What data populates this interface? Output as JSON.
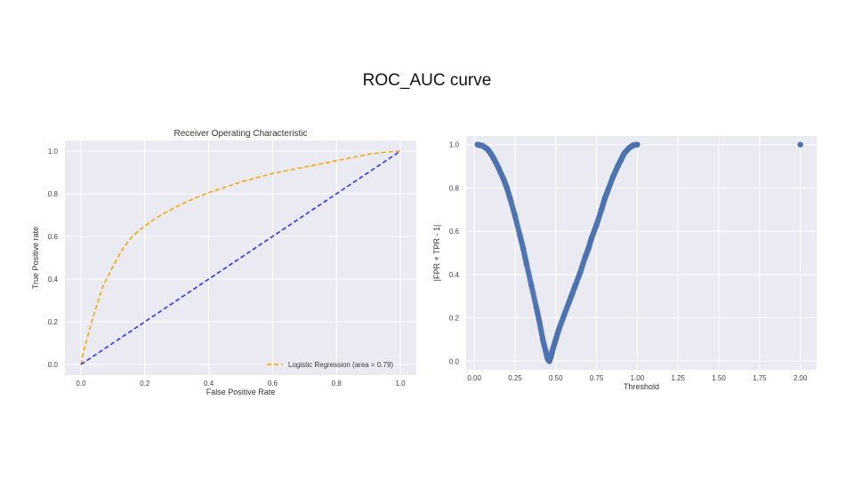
{
  "slide": {
    "title": "ROC_AUC curve"
  },
  "chart_data": [
    {
      "type": "line",
      "title": "Receiver Operating Characteristic",
      "xlabel": "False Positive Rate",
      "ylabel": "True Positive rate",
      "xlim": [
        -0.05,
        1.05
      ],
      "ylim": [
        -0.05,
        1.05
      ],
      "xticks": [
        "0.0",
        "0.2",
        "0.4",
        "0.6",
        "0.8",
        "1.0"
      ],
      "yticks": [
        "0.0",
        "0.2",
        "0.4",
        "0.6",
        "0.8",
        "1.0"
      ],
      "grid": true,
      "legend_position": "bottom-right",
      "series": [
        {
          "name": "Logistic Regression (area = 0.79)",
          "style": "dashed",
          "color": "#ffa500",
          "x": [
            0.0,
            0.01,
            0.03,
            0.05,
            0.07,
            0.1,
            0.13,
            0.16,
            0.2,
            0.25,
            0.3,
            0.35,
            0.4,
            0.45,
            0.5,
            0.55,
            0.6,
            0.65,
            0.7,
            0.75,
            0.8,
            0.85,
            0.9,
            0.95,
            1.0
          ],
          "y": [
            0.0,
            0.07,
            0.18,
            0.28,
            0.37,
            0.46,
            0.54,
            0.6,
            0.65,
            0.7,
            0.74,
            0.775,
            0.805,
            0.83,
            0.855,
            0.875,
            0.895,
            0.91,
            0.925,
            0.94,
            0.955,
            0.97,
            0.985,
            0.995,
            1.0
          ]
        },
        {
          "style": "dashed",
          "color": "#3333ff",
          "x": [
            0.0,
            1.0
          ],
          "y": [
            0.0,
            1.0
          ]
        }
      ]
    },
    {
      "type": "scatter",
      "xlabel": "Threshold",
      "ylabel": "|FPR + TPR - 1|",
      "xlim": [
        -0.05,
        2.1
      ],
      "ylim": [
        -0.04,
        1.04
      ],
      "xticks": [
        "0.00",
        "0.25",
        "0.50",
        "0.75",
        "1.00",
        "1.25",
        "1.50",
        "1.75",
        "2.00"
      ],
      "yticks": [
        "0.0",
        "0.2",
        "0.4",
        "0.6",
        "0.8",
        "1.0"
      ],
      "grid": true,
      "color": "#4c72b0",
      "x": [
        0.02,
        0.05,
        0.08,
        0.1,
        0.12,
        0.15,
        0.18,
        0.2,
        0.22,
        0.25,
        0.28,
        0.3,
        0.32,
        0.35,
        0.38,
        0.4,
        0.42,
        0.44,
        0.45,
        0.46,
        0.47,
        0.48,
        0.5,
        0.52,
        0.55,
        0.58,
        0.6,
        0.62,
        0.65,
        0.68,
        0.7,
        0.72,
        0.75,
        0.78,
        0.8,
        0.82,
        0.85,
        0.88,
        0.9,
        0.92,
        0.95,
        0.97,
        0.98,
        1.0,
        2.0
      ],
      "y": [
        1.0,
        0.995,
        0.98,
        0.96,
        0.935,
        0.89,
        0.84,
        0.8,
        0.75,
        0.67,
        0.58,
        0.52,
        0.45,
        0.35,
        0.25,
        0.18,
        0.1,
        0.04,
        0.01,
        0.0,
        0.02,
        0.05,
        0.1,
        0.15,
        0.21,
        0.27,
        0.31,
        0.35,
        0.41,
        0.48,
        0.52,
        0.57,
        0.63,
        0.7,
        0.75,
        0.79,
        0.85,
        0.9,
        0.93,
        0.96,
        0.985,
        0.995,
        0.998,
        1.0,
        1.0
      ]
    }
  ]
}
